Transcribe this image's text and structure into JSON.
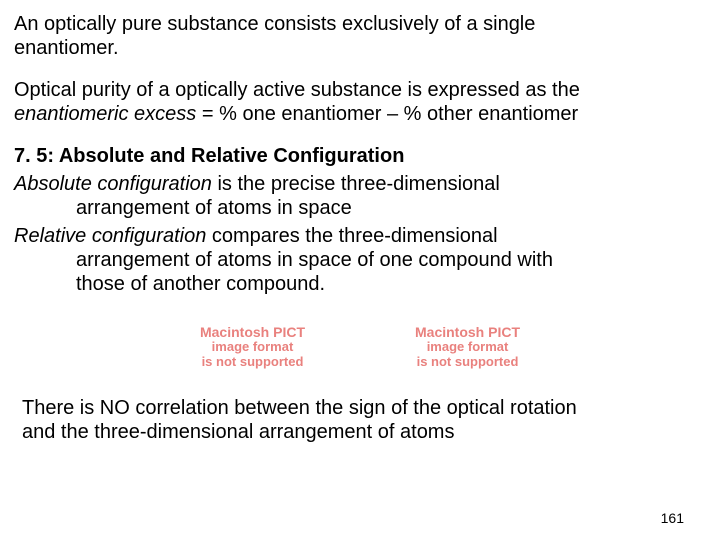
{
  "text": {
    "p1a": "An optically pure substance consists exclusively of a single",
    "p1b": "enantiomer.",
    "p2a": "Optical purity of a optically active substance is expressed as the",
    "p2b_em": "enantiomeric excess",
    "p2b_rest": " = % one enantiomer – % other enantiomer",
    "h1": "7. 5: Absolute and Relative Configuration",
    "def1_em": "Absolute configuration",
    "def1_a": " is the precise three-dimensional",
    "def1_b": "arrangement of atoms in space",
    "def2_em": "Relative configuration",
    "def2_a": " compares the three-dimensional",
    "def2_b": "arrangement of atoms in space of one compound with",
    "def2_c": "those of another compound.",
    "pict_l1": "Macintosh PICT",
    "pict_l2": "image format",
    "pict_l3": "is not supported",
    "foot_a": "There is NO correlation between the sign of the optical rotation",
    "foot_b": "and the three-dimensional arrangement of atoms",
    "page_num": "161"
  },
  "style": {
    "pict_color": "#e9817e",
    "text_color": "#000000",
    "bg_color": "#ffffff"
  }
}
